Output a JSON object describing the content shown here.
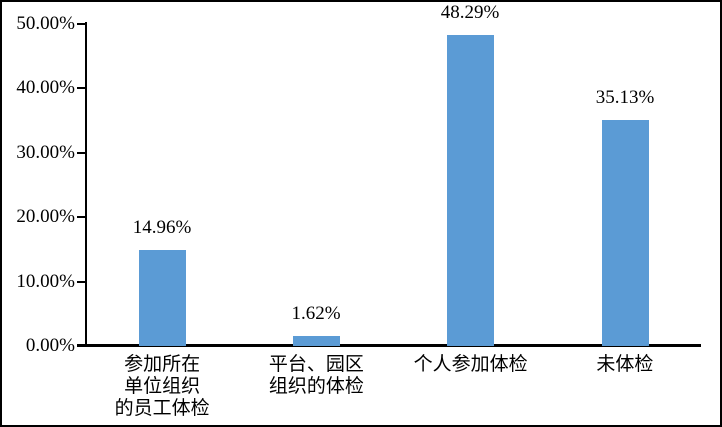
{
  "chart_data": {
    "type": "bar",
    "title": "",
    "xlabel": "",
    "ylabel": "",
    "categories": [
      "参加所在\n单位组织\n的员工体检",
      "平台、园区\n组织的体检",
      "个人参加体检",
      "未体检"
    ],
    "values": [
      14.96,
      1.62,
      48.29,
      35.13
    ],
    "value_labels": [
      "14.96%",
      "1.62%",
      "48.29%",
      "35.13%"
    ],
    "ylim": [
      0,
      50
    ],
    "ytick_labels": [
      "50.00%",
      "40.00%",
      "30.00%",
      "20.00%",
      "10.00%",
      "0.00%"
    ],
    "ytick_values": [
      50,
      40,
      30,
      20,
      10,
      0
    ],
    "grid": "off",
    "legend": "none",
    "bar_color": "#5B9BD5",
    "axis_color": "#000000",
    "background_color": "#FFFFFF"
  }
}
